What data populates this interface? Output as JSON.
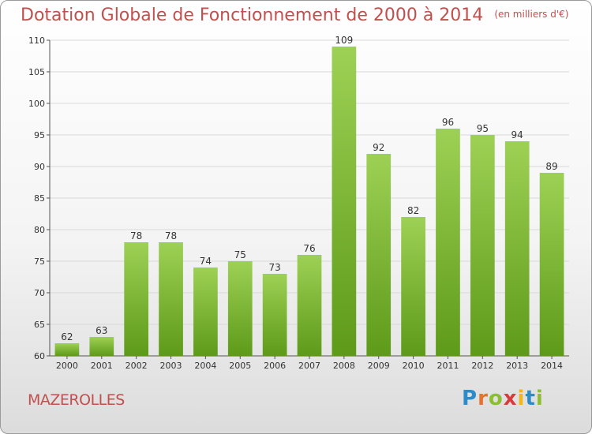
{
  "header": {
    "title": "Dotation Globale de Fonctionnement de 2000 à 2014",
    "unit": "(en milliers d'€)"
  },
  "footer": {
    "commune": "MAZEROLLES",
    "logo": "Proxiti"
  },
  "colors": {
    "title": "#c0504d",
    "bar_top": "#9dd155",
    "bar_bottom": "#5e9a19",
    "grid": "#d9d9d9"
  },
  "chart_data": {
    "type": "bar",
    "title": "Dotation Globale de Fonctionnement de 2000 à 2014",
    "subtitle": "(en milliers d'€)",
    "categories": [
      "2000",
      "2001",
      "2002",
      "2003",
      "2004",
      "2005",
      "2006",
      "2007",
      "2008",
      "2009",
      "2010",
      "2011",
      "2012",
      "2013",
      "2014"
    ],
    "values": [
      62,
      63,
      78,
      78,
      74,
      75,
      73,
      76,
      109,
      92,
      82,
      96,
      95,
      94,
      89
    ],
    "ylim": [
      60,
      110
    ],
    "yticks": [
      60,
      65,
      70,
      75,
      80,
      85,
      90,
      95,
      100,
      105,
      110
    ],
    "xlabel": "",
    "ylabel": "",
    "grid": true,
    "data_labels": true
  }
}
